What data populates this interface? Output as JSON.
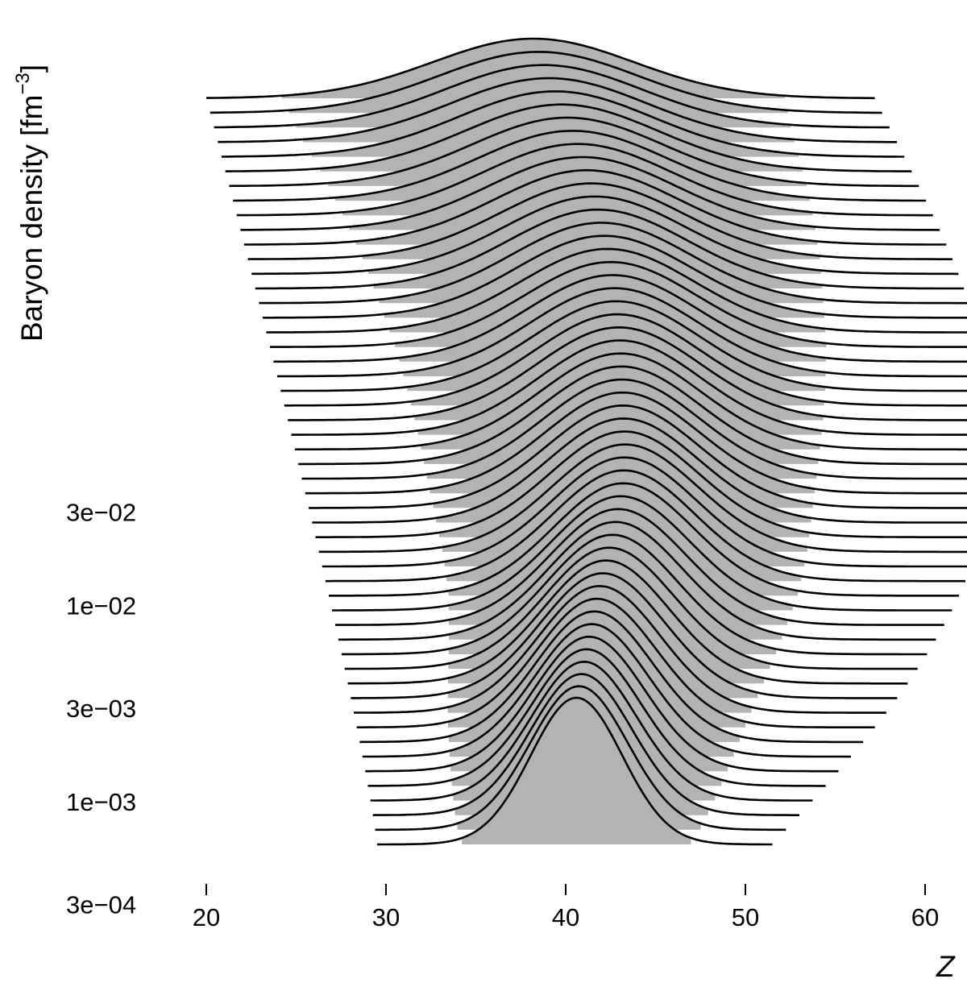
{
  "chart_data": {
    "type": "ridgeline",
    "ylabel": "Baryon density [fm",
    "ylabel_sup": "−3",
    "ylabel_close": "]",
    "xlabel": "Z",
    "x_ticks": [
      20,
      30,
      40,
      50,
      60
    ],
    "y_scale": "log",
    "y_ticks": [
      {
        "label": "3e−02",
        "value": 0.03
      },
      {
        "label": "1e−02",
        "value": 0.01
      },
      {
        "label": "3e−03",
        "value": 0.003
      },
      {
        "label": "1e−03",
        "value": 0.001
      },
      {
        "label": "3e−04",
        "value": 0.0003
      }
    ],
    "y_range": [
      0.0003,
      0.03
    ],
    "n_curves": 52,
    "baseline_end": {
      "density": 0.0003,
      "z_min": 29.5,
      "z_max": 51.5,
      "peak_z": 40.6
    },
    "top_end": {
      "density": 0.034,
      "z_min": 20.0,
      "z_max": 57.2,
      "peak_z": 38.2
    },
    "fill_color": "#b3b3b3",
    "line_color": "#000000"
  }
}
